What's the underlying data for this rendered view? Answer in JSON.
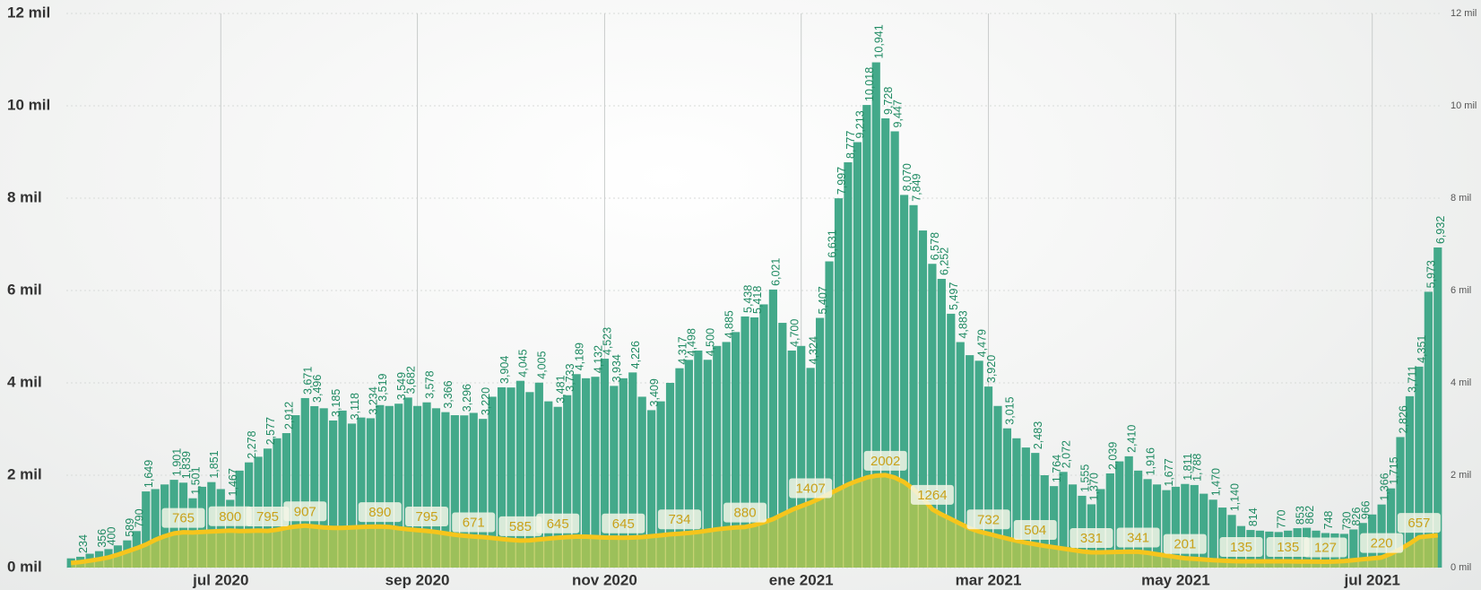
{
  "chart_data": {
    "type": "bar",
    "categories": [
      null,
      null,
      null,
      null,
      null,
      null,
      null,
      null,
      null,
      null,
      null,
      null,
      null,
      null,
      null,
      null,
      "jul 2020",
      null,
      null,
      null,
      null,
      null,
      null,
      null,
      null,
      null,
      null,
      null,
      null,
      null,
      null,
      null,
      null,
      null,
      null,
      null,
      null,
      "sep 2020",
      null,
      null,
      null,
      null,
      null,
      null,
      null,
      null,
      null,
      null,
      null,
      null,
      null,
      null,
      null,
      null,
      null,
      null,
      null,
      "nov 2020",
      null,
      null,
      null,
      null,
      null,
      null,
      null,
      null,
      null,
      null,
      null,
      null,
      null,
      null,
      null,
      null,
      null,
      null,
      null,
      null,
      "ene 2021",
      null,
      null,
      null,
      null,
      null,
      null,
      null,
      null,
      null,
      null,
      null,
      null,
      null,
      null,
      null,
      null,
      null,
      null,
      null,
      "mar 2021",
      null,
      null,
      null,
      null,
      null,
      null,
      null,
      null,
      null,
      null,
      null,
      null,
      null,
      null,
      null,
      null,
      null,
      null,
      null,
      "may 2021",
      null,
      null,
      null,
      null,
      null,
      null,
      null,
      null,
      null,
      null,
      null,
      null,
      null,
      null,
      null,
      null,
      null,
      null,
      null,
      null,
      "jul 2021",
      null,
      null,
      null,
      null,
      null,
      null,
      null
    ],
    "series": [
      {
        "type": "bar",
        "color": "#43a98a",
        "values": [
          200,
          234,
          300,
          356,
          400,
          480,
          589,
          790,
          1649,
          1700,
          1800,
          1901,
          1839,
          1501,
          1750,
          1851,
          1700,
          1467,
          2100,
          2278,
          2400,
          2577,
          2800,
          2912,
          3300,
          3671,
          3496,
          3450,
          3185,
          3400,
          3118,
          3250,
          3234,
          3519,
          3500,
          3549,
          3682,
          3500,
          3578,
          3450,
          3366,
          3300,
          3296,
          3350,
          3220,
          3700,
          3904,
          3900,
          4045,
          3800,
          4005,
          3600,
          3481,
          3733,
          4189,
          4100,
          4132,
          4523,
          3934,
          4100,
          4226,
          3700,
          3409,
          3600,
          4000,
          4317,
          4498,
          4700,
          4500,
          4800,
          4885,
          5100,
          5438,
          5418,
          5700,
          6021,
          5300,
          4700,
          4800,
          4324,
          5407,
          6631,
          7997,
          8777,
          9213,
          10018,
          10941,
          9728,
          9447,
          8070,
          7849,
          7300,
          6578,
          6252,
          5497,
          4883,
          4600,
          4479,
          3920,
          3500,
          3015,
          2800,
          2600,
          2483,
          2000,
          1764,
          2072,
          1800,
          1555,
          1370,
          1700,
          2039,
          2300,
          2410,
          2100,
          1916,
          1800,
          1677,
          1750,
          1811,
          1788,
          1600,
          1470,
          1300,
          1140,
          900,
          814,
          800,
          780,
          770,
          800,
          853,
          862,
          800,
          748,
          740,
          730,
          826,
          966,
          1150,
          1366,
          1715,
          2826,
          3711,
          4351,
          5973,
          6932
        ],
        "value_labels": [
          null,
          "234",
          null,
          "356",
          "400",
          null,
          "589",
          "790",
          "1,649",
          null,
          null,
          "1,901",
          "1,839",
          "1,501",
          null,
          "1,851",
          null,
          "1,467",
          null,
          "2,278",
          null,
          "2,577",
          null,
          "2,912",
          null,
          "3,671",
          "3,496",
          null,
          "3,185",
          null,
          "3,118",
          null,
          "3,234",
          "3,519",
          null,
          "3,549",
          "3,682",
          null,
          "3,578",
          null,
          "3,366",
          null,
          "3,296",
          null,
          "3,220",
          null,
          "3,904",
          null,
          "4,045",
          null,
          "4,005",
          null,
          "3,481",
          "3,733",
          "4,189",
          null,
          "4,132",
          "4,523",
          "3,934",
          null,
          "4,226",
          null,
          "3,409",
          null,
          null,
          "4,317",
          "4,498",
          null,
          "4,500",
          null,
          "4,885",
          null,
          "5,438",
          "5,418",
          null,
          "6,021",
          null,
          "4,700",
          null,
          "4,324",
          "5,407",
          "6,631",
          "7,997",
          "8,777",
          "9,213",
          "10,018",
          "10,941",
          "9,728",
          "9,447",
          "8,070",
          "7,849",
          null,
          "6,578",
          "6,252",
          "5,497",
          "4,883",
          null,
          "4,479",
          "3,920",
          null,
          "3,015",
          null,
          null,
          "2,483",
          null,
          "1,764",
          "2,072",
          null,
          "1,555",
          "1,370",
          null,
          "2,039",
          null,
          "2,410",
          null,
          "1,916",
          null,
          "1,677",
          null,
          "1,811",
          "1,788",
          null,
          "1,470",
          null,
          "1,140",
          null,
          "814",
          null,
          null,
          "770",
          null,
          "853",
          "862",
          null,
          "748",
          null,
          "730",
          "826",
          "966",
          null,
          "1,366",
          "1,715",
          "2,826",
          "3,711",
          "4,351",
          "5,973",
          "6,932"
        ]
      },
      {
        "type": "line",
        "color": "#f6c51c",
        "area_color": "#b9c84a",
        "values": [
          100,
          120,
          150,
          180,
          220,
          280,
          350,
          420,
          500,
          600,
          680,
          740,
          765,
          760,
          770,
          780,
          790,
          800,
          790,
          795,
          800,
          795,
          820,
          860,
          890,
          907,
          890,
          870,
          860,
          860,
          870,
          880,
          885,
          890,
          880,
          850,
          830,
          810,
          795,
          770,
          740,
          710,
          690,
          671,
          660,
          640,
          620,
          600,
          585,
          590,
          610,
          630,
          645,
          660,
          670,
          670,
          660,
          650,
          648,
          645,
          650,
          660,
          680,
          700,
          720,
          734,
          750,
          770,
          800,
          830,
          850,
          870,
          880,
          920,
          980,
          1050,
          1150,
          1250,
          1330,
          1407,
          1500,
          1600,
          1700,
          1800,
          1880,
          1950,
          1990,
          2002,
          1950,
          1850,
          1700,
          1500,
          1264,
          1150,
          1050,
          950,
          850,
          780,
          732,
          680,
          630,
          580,
          540,
          504,
          470,
          440,
          410,
          380,
          350,
          331,
          330,
          335,
          340,
          345,
          341,
          320,
          290,
          260,
          230,
          201,
          190,
          175,
          160,
          150,
          140,
          135,
          135,
          135,
          135,
          135,
          135,
          132,
          130,
          128,
          127,
          130,
          140,
          160,
          180,
          200,
          220,
          300,
          400,
          520,
          657,
          680,
          700
        ],
        "value_labels": [
          null,
          null,
          null,
          null,
          null,
          null,
          null,
          null,
          null,
          null,
          null,
          null,
          "765",
          null,
          null,
          null,
          null,
          "800",
          null,
          null,
          null,
          "795",
          null,
          null,
          null,
          "907",
          null,
          null,
          null,
          null,
          null,
          null,
          null,
          "890",
          null,
          null,
          null,
          null,
          "795",
          null,
          null,
          null,
          null,
          "671",
          null,
          null,
          null,
          null,
          "585",
          null,
          null,
          null,
          "645",
          null,
          null,
          null,
          null,
          null,
          null,
          "645",
          null,
          null,
          null,
          null,
          null,
          "734",
          null,
          null,
          null,
          null,
          null,
          null,
          "880",
          null,
          null,
          null,
          null,
          null,
          null,
          "1407",
          null,
          null,
          null,
          null,
          null,
          null,
          null,
          "2002",
          null,
          null,
          null,
          null,
          "1264",
          null,
          null,
          null,
          null,
          null,
          "732",
          null,
          null,
          null,
          null,
          "504",
          null,
          null,
          null,
          null,
          null,
          "331",
          null,
          null,
          null,
          null,
          "341",
          null,
          null,
          null,
          null,
          "201",
          null,
          null,
          null,
          null,
          null,
          "135",
          null,
          null,
          null,
          null,
          "135",
          null,
          null,
          null,
          "127",
          null,
          null,
          null,
          null,
          null,
          "220",
          null,
          null,
          null,
          "657",
          null,
          null
        ]
      }
    ],
    "ylim": [
      0,
      12000
    ],
    "yticks": [
      {
        "value": 0,
        "label": "0 mil"
      },
      {
        "value": 2000,
        "label": "2 mil"
      },
      {
        "value": 4000,
        "label": "4 mil"
      },
      {
        "value": 6000,
        "label": "6 mil"
      },
      {
        "value": 8000,
        "label": "8 mil"
      },
      {
        "value": 10000,
        "label": "10 mil"
      },
      {
        "value": 12000,
        "label": "12 mil"
      }
    ],
    "y2lim": [
      0,
      12000
    ],
    "y2ticks": [
      {
        "value": 0,
        "label": "0 mil"
      },
      {
        "value": 2000,
        "label": "2 mil"
      },
      {
        "value": 4000,
        "label": "4 mil"
      },
      {
        "value": 6000,
        "label": "6 mil"
      },
      {
        "value": 8000,
        "label": "8 mil"
      },
      {
        "value": 10000,
        "label": "10 mil"
      },
      {
        "value": 12000,
        "label": "12 mil"
      }
    ],
    "grid": true
  }
}
